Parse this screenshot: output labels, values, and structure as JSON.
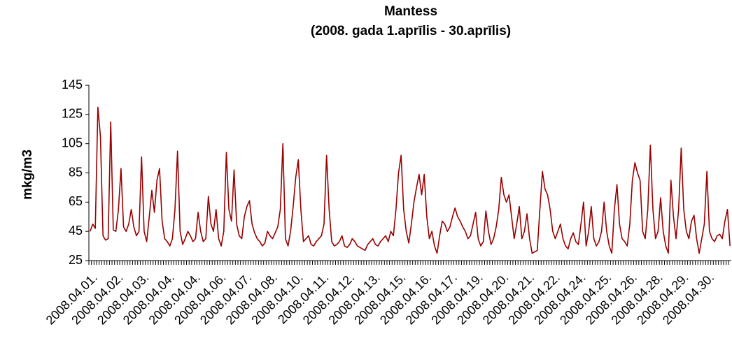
{
  "chart_data": {
    "type": "line",
    "title": "Mantess",
    "subtitle": "(2008. gada 1.aprīlis - 30.aprīlis)",
    "y_label": "mkg/m3",
    "categories": [
      "2008.04.01.",
      null,
      null,
      null,
      null,
      null,
      null,
      null,
      null,
      null,
      "2008.04.02.",
      null,
      null,
      null,
      null,
      null,
      null,
      null,
      null,
      null,
      "2008.04.03.",
      null,
      null,
      null,
      null,
      null,
      null,
      null,
      null,
      null,
      "2008.04.04.",
      null,
      null,
      null,
      null,
      null,
      null,
      null,
      null,
      null,
      "2008.04.04.",
      null,
      null,
      null,
      null,
      null,
      null,
      null,
      null,
      null,
      "2008.04.06.",
      null,
      null,
      null,
      null,
      null,
      null,
      null,
      null,
      null,
      "2008.04.07.",
      null,
      null,
      null,
      null,
      null,
      null,
      null,
      null,
      null,
      "2008.04.08.",
      null,
      null,
      null,
      null,
      null,
      null,
      null,
      null,
      null,
      "2008.04.10.",
      null,
      null,
      null,
      null,
      null,
      null,
      null,
      null,
      null,
      "2008.04.11.",
      null,
      null,
      null,
      null,
      null,
      null,
      null,
      null,
      null,
      "2008.04.12.",
      null,
      null,
      null,
      null,
      null,
      null,
      null,
      null,
      null,
      "2008.04.13.",
      null,
      null,
      null,
      null,
      null,
      null,
      null,
      null,
      null,
      "2008.04.15.",
      null,
      null,
      null,
      null,
      null,
      null,
      null,
      null,
      null,
      "2008.04.16.",
      null,
      null,
      null,
      null,
      null,
      null,
      null,
      null,
      null,
      "2008.04.17.",
      null,
      null,
      null,
      null,
      null,
      null,
      null,
      null,
      null,
      "2008.04.19.",
      null,
      null,
      null,
      null,
      null,
      null,
      null,
      null,
      null,
      "2008.04.20.",
      null,
      null,
      null,
      null,
      null,
      null,
      null,
      null,
      null,
      "2008.04.21.",
      null,
      null,
      null,
      null,
      null,
      null,
      null,
      null,
      null,
      "2008.04.22.",
      null,
      null,
      null,
      null,
      null,
      null,
      null,
      null,
      null,
      "2008.04.24.",
      null,
      null,
      null,
      null,
      null,
      null,
      null,
      null,
      null,
      "2008.04.25.",
      null,
      null,
      null,
      null,
      null,
      null,
      null,
      null,
      null,
      "2008.04.26.",
      null,
      null,
      null,
      null,
      null,
      null,
      null,
      null,
      null,
      "2008.04.28.",
      null,
      null,
      null,
      null,
      null,
      null,
      null,
      null,
      null,
      "2008.04.29.",
      null,
      null,
      null,
      null,
      null,
      null,
      null,
      null,
      null,
      "2008.04.30.",
      null,
      null,
      null,
      null,
      null,
      null,
      null,
      null,
      null
    ],
    "values": [
      45,
      50,
      47,
      130,
      110,
      42,
      39,
      40,
      120,
      46,
      45,
      60,
      88,
      48,
      45,
      50,
      60,
      48,
      42,
      45,
      96,
      45,
      38,
      55,
      73,
      58,
      80,
      88,
      52,
      40,
      38,
      35,
      40,
      60,
      100,
      45,
      36,
      40,
      45,
      42,
      38,
      40,
      58,
      45,
      38,
      40,
      69,
      50,
      45,
      60,
      40,
      35,
      45,
      99,
      60,
      52,
      87,
      50,
      42,
      40,
      55,
      62,
      66,
      50,
      44,
      40,
      38,
      35,
      37,
      45,
      42,
      40,
      44,
      48,
      60,
      105,
      40,
      35,
      45,
      62,
      82,
      94,
      60,
      38,
      40,
      42,
      36,
      35,
      38,
      40,
      42,
      50,
      97,
      60,
      38,
      35,
      36,
      38,
      42,
      35,
      34,
      36,
      40,
      38,
      35,
      34,
      33,
      32,
      36,
      38,
      40,
      36,
      35,
      38,
      40,
      42,
      38,
      45,
      42,
      60,
      85,
      97,
      60,
      45,
      37,
      50,
      65,
      75,
      84,
      70,
      84,
      55,
      40,
      45,
      35,
      30,
      42,
      52,
      50,
      45,
      48,
      55,
      61,
      55,
      52,
      48,
      45,
      40,
      42,
      50,
      58,
      40,
      35,
      38,
      59,
      45,
      36,
      40,
      48,
      60,
      82,
      70,
      65,
      70,
      55,
      40,
      50,
      62,
      40,
      45,
      57,
      40,
      30,
      31,
      32,
      60,
      86,
      74,
      70,
      60,
      45,
      40,
      45,
      50,
      40,
      35,
      33,
      40,
      44,
      38,
      36,
      50,
      65,
      35,
      45,
      62,
      40,
      35,
      38,
      45,
      65,
      45,
      35,
      30,
      60,
      77,
      50,
      40,
      38,
      35,
      50,
      80,
      92,
      85,
      80,
      45,
      40,
      60,
      104,
      60,
      40,
      45,
      68,
      45,
      35,
      30,
      80,
      55,
      40,
      60,
      102,
      60,
      45,
      40,
      52,
      56,
      40,
      30,
      40,
      50,
      86,
      45,
      40,
      38,
      42,
      43,
      40,
      52,
      60,
      35
    ],
    "color": "#990000",
    "ylim": [
      25,
      145
    ],
    "yticks": [
      25,
      45,
      65,
      85,
      105,
      125,
      145
    ],
    "grid": false
  }
}
